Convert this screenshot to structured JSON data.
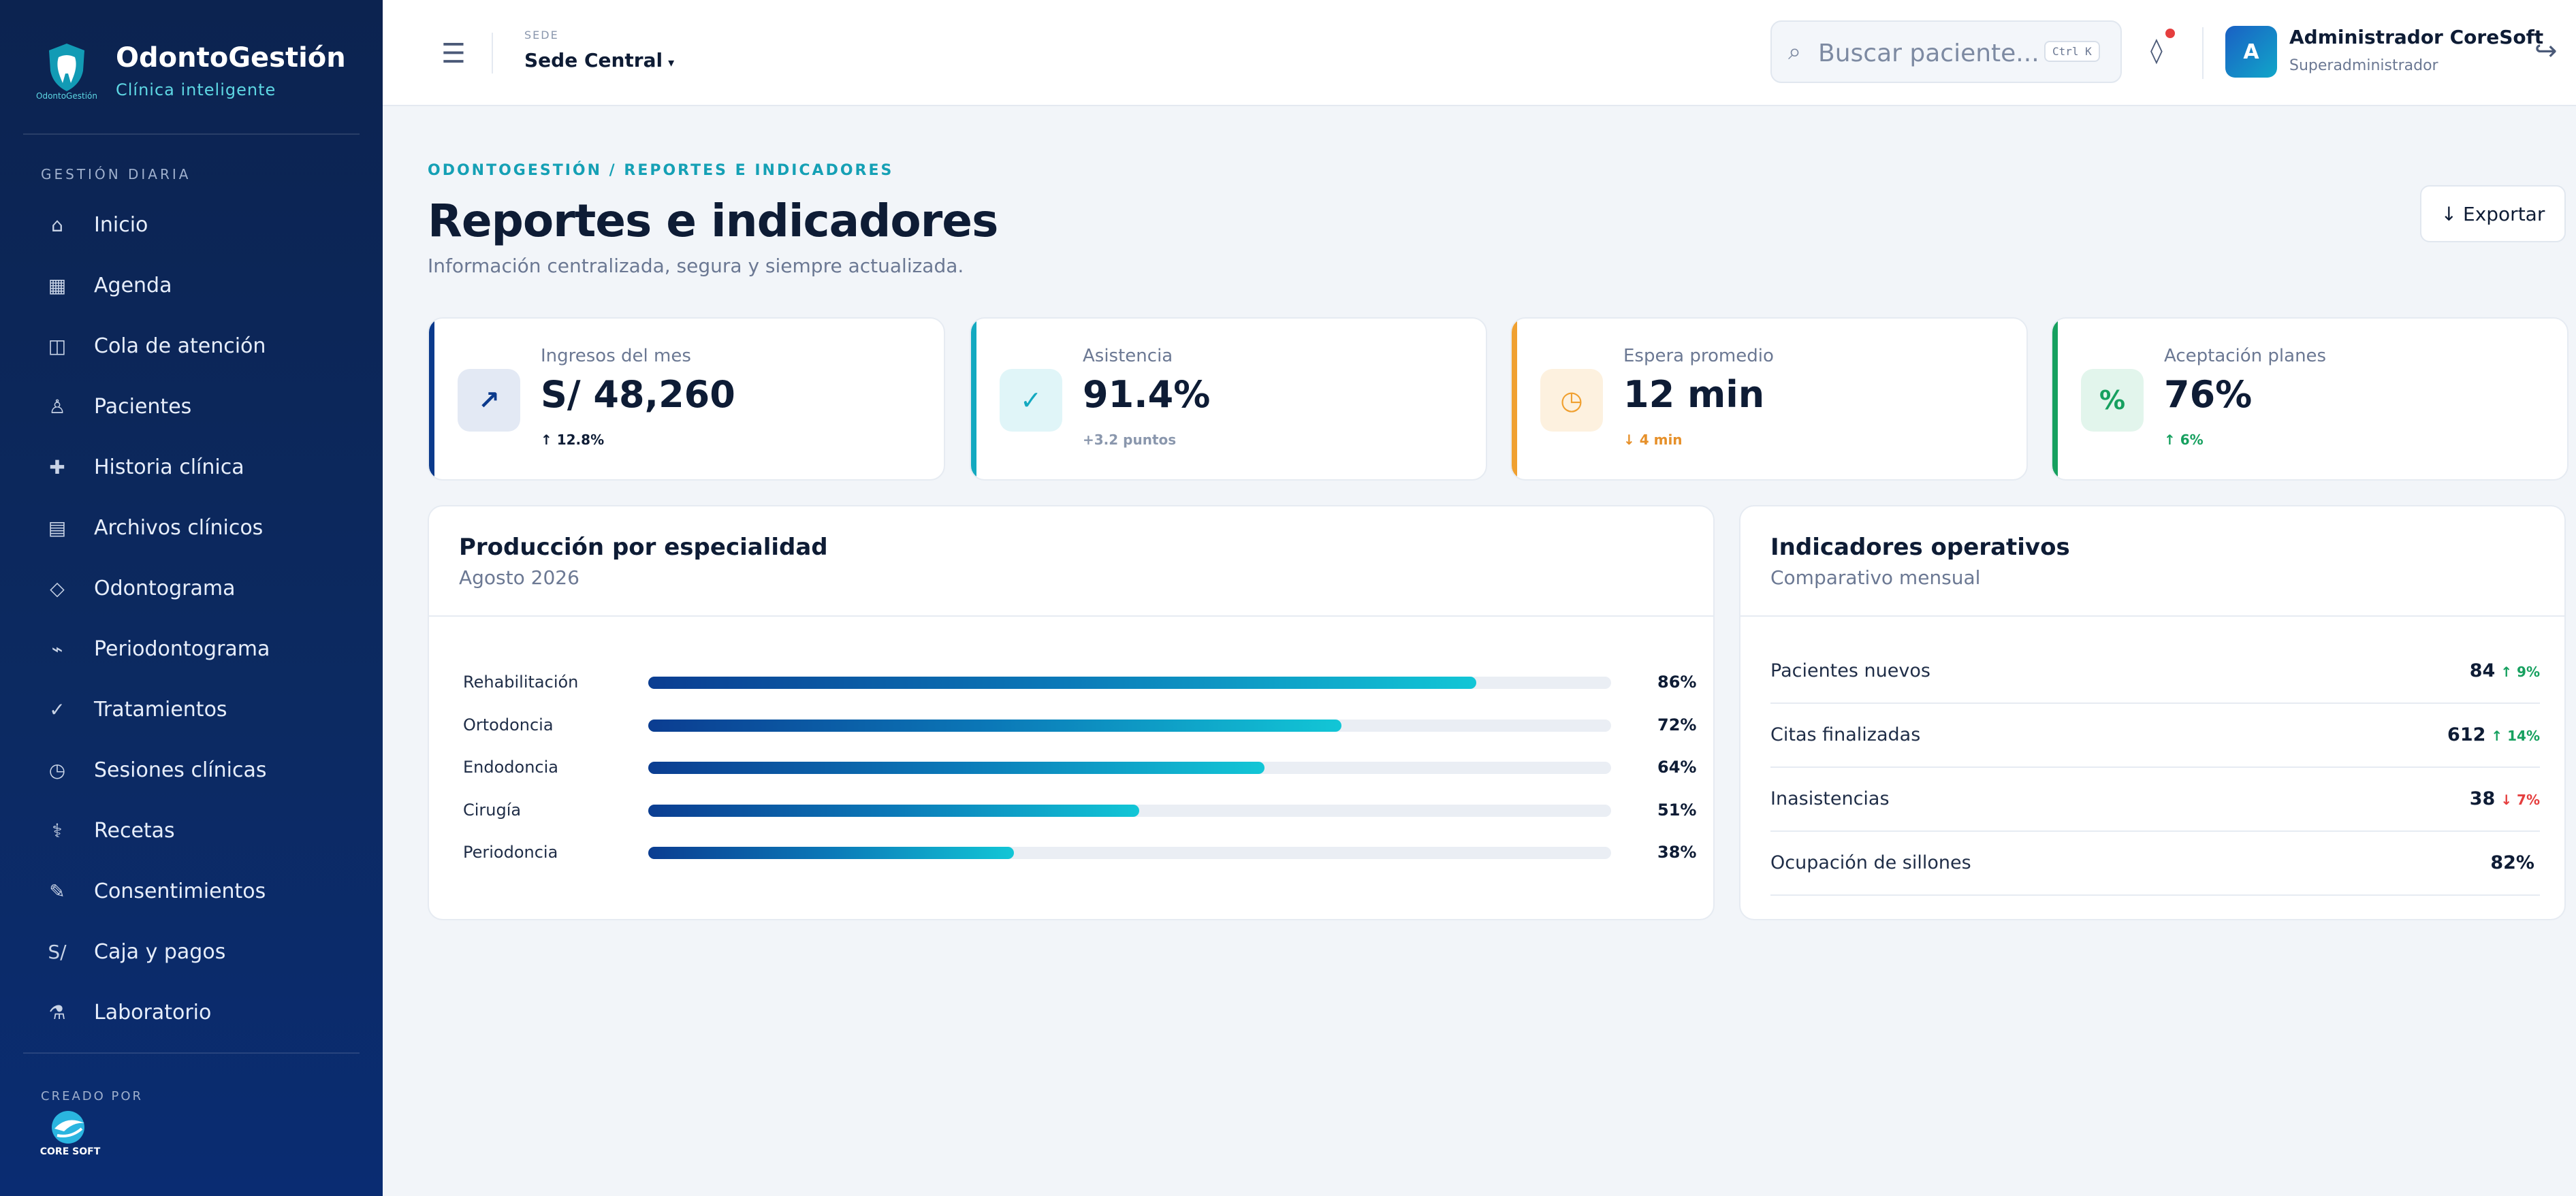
{
  "brand": {
    "title": "OdontoGestión",
    "subtitle": "Clínica inteligente",
    "logo_caption": "OdontoGestión"
  },
  "sidebar": {
    "section_label": "GESTIÓN DIARIA",
    "items": [
      {
        "label": "Inicio",
        "icon": "home-icon",
        "glyph": "⌂"
      },
      {
        "label": "Agenda",
        "icon": "calendar-icon",
        "glyph": "▦"
      },
      {
        "label": "Cola de atención",
        "icon": "queue-icon",
        "glyph": "◫"
      },
      {
        "label": "Pacientes",
        "icon": "user-icon",
        "glyph": "♙"
      },
      {
        "label": "Historia clínica",
        "icon": "medical-cross-icon",
        "glyph": "✚"
      },
      {
        "label": "Archivos clínicos",
        "icon": "files-icon",
        "glyph": "▤"
      },
      {
        "label": "Odontograma",
        "icon": "tooth-icon",
        "glyph": "◇"
      },
      {
        "label": "Periodontograma",
        "icon": "wave-icon",
        "glyph": "⌁"
      },
      {
        "label": "Tratamientos",
        "icon": "check-icon",
        "glyph": "✓"
      },
      {
        "label": "Sesiones clínicas",
        "icon": "clock-icon",
        "glyph": "◷"
      },
      {
        "label": "Recetas",
        "icon": "prescription-icon",
        "glyph": "⚕"
      },
      {
        "label": "Consentimientos",
        "icon": "pen-icon",
        "glyph": "✎"
      },
      {
        "label": "Caja y pagos",
        "icon": "currency-icon",
        "glyph": "S/"
      },
      {
        "label": "Laboratorio",
        "icon": "flask-icon",
        "glyph": "⚗"
      }
    ],
    "created_by_label": "CREADO POR",
    "creator_logo_text": "CORE SOFT"
  },
  "topbar": {
    "sede_label": "SEDE",
    "sede_value": "Sede Central",
    "search_placeholder": "Buscar paciente...",
    "search_shortcut": "Ctrl K",
    "user_initial": "A",
    "user_name": "Administrador CoreSoft",
    "user_role": "Superadministrador"
  },
  "page": {
    "breadcrumb": "ODONTOGESTIÓN / REPORTES E INDICADORES",
    "title": "Reportes e indicadores",
    "subtitle": "Información centralizada, segura y siempre actualizada.",
    "export_label": "↓ Exportar"
  },
  "kpis": [
    {
      "label": "Ingresos del mes",
      "value": "S/ 48,260",
      "delta": "↑ 12.8%",
      "icon": "trend-up-icon",
      "glyph": "↗",
      "accent": "#0b3a8c",
      "icon_bg": "#e3e9f4",
      "icon_color": "#0b3a8c",
      "delta_color": "#0e1c35"
    },
    {
      "label": "Asistencia",
      "value": "91.4%",
      "delta": "+3.2 puntos",
      "icon": "check-icon",
      "glyph": "✓",
      "accent": "#13a9c0",
      "icon_bg": "#e0f5f8",
      "icon_color": "#13a9c0",
      "delta_color": "#8a97ad"
    },
    {
      "label": "Espera promedio",
      "value": "12 min",
      "delta": "↓ 4 min",
      "icon": "clock-icon",
      "glyph": "◷",
      "accent": "#f0a030",
      "icon_bg": "#fdf1df",
      "icon_color": "#f0a030",
      "delta_color": "#e6902a"
    },
    {
      "label": "Aceptación planes",
      "value": "76%",
      "delta": "↑ 6%",
      "icon": "percent-icon",
      "glyph": "%",
      "accent": "#16a05f",
      "icon_bg": "#e2f5ec",
      "icon_color": "#16a05f",
      "delta_color": "#16a05f"
    }
  ],
  "production": {
    "title": "Producción por especialidad",
    "subtitle": "Agosto 2026",
    "rows": [
      {
        "label": "Rehabilitación",
        "value": 86,
        "display": "86%"
      },
      {
        "label": "Ortodoncia",
        "value": 72,
        "display": "72%"
      },
      {
        "label": "Endodoncia",
        "value": 64,
        "display": "64%"
      },
      {
        "label": "Cirugía",
        "value": 51,
        "display": "51%"
      },
      {
        "label": "Periodoncia",
        "value": 38,
        "display": "38%"
      }
    ]
  },
  "indicators": {
    "title": "Indicadores operativos",
    "subtitle": "Comparativo mensual",
    "rows": [
      {
        "label": "Pacientes nuevos",
        "value": "84",
        "delta": "↑ 9%",
        "delta_color": "#16a05f"
      },
      {
        "label": "Citas finalizadas",
        "value": "612",
        "delta": "↑ 14%",
        "delta_color": "#16a05f"
      },
      {
        "label": "Inasistencias",
        "value": "38",
        "delta": "↓ 7%",
        "delta_color": "#e53e3e"
      },
      {
        "label": "Ocupación de sillones",
        "value": "82%",
        "delta": "",
        "delta_color": "#16a05f"
      }
    ]
  }
}
